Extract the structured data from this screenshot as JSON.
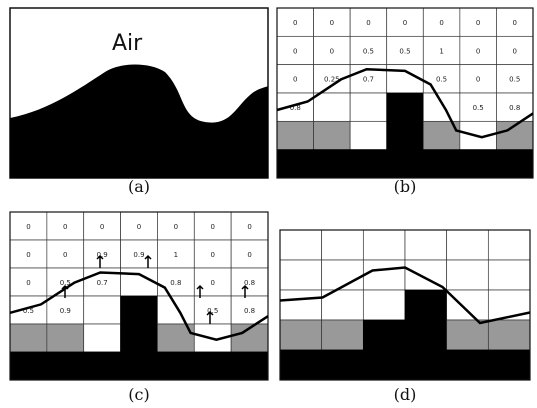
{
  "panel_a": {
    "label": "Air",
    "caption": "(a)"
  },
  "panel_b": {
    "caption": "(b)",
    "cells": [
      [
        "0",
        "0",
        "0",
        "0",
        "0",
        "0",
        "0"
      ],
      [
        "0",
        "0",
        "0.5",
        "0.5",
        "1",
        "0",
        "0"
      ],
      [
        "0",
        "0.25",
        "0.7",
        null,
        "0.5",
        "0",
        "0.5"
      ],
      [
        "0.8",
        null,
        null,
        null,
        null,
        "0.5",
        "0.8"
      ]
    ]
  },
  "panel_c": {
    "caption": "(c)",
    "cells": [
      [
        "0",
        "0",
        "0",
        "0",
        "0",
        "0",
        "0"
      ],
      [
        "0",
        "0",
        "0.9",
        "0.9",
        "1",
        "0",
        "0"
      ],
      [
        "0",
        "0.5",
        "0.7",
        null,
        "0.8",
        "0",
        "0.8"
      ],
      [
        "0.5",
        "0.9",
        null,
        null,
        null,
        "0.5",
        "0.8"
      ]
    ]
  },
  "panel_d": {
    "caption": "(d)"
  }
}
